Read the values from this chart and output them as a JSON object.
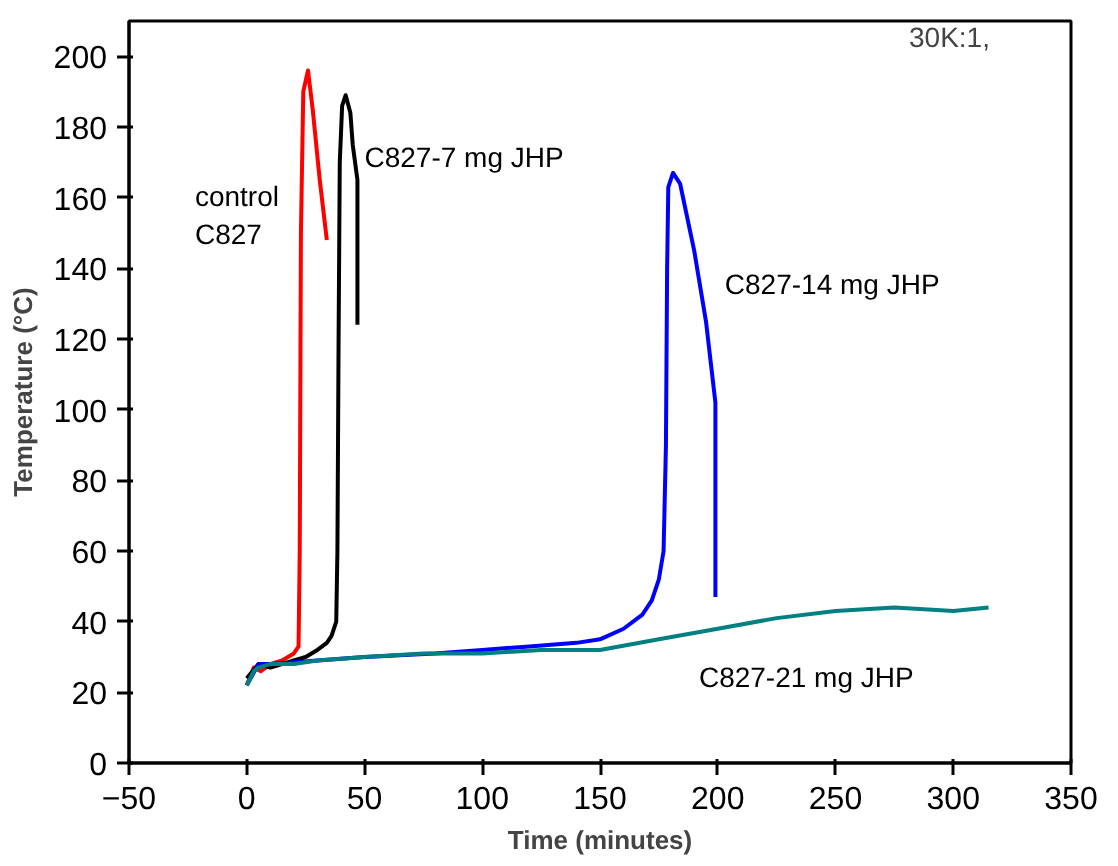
{
  "chart_data": {
    "type": "line",
    "xlabel": "Time (minutes)",
    "ylabel": "Temperature (°C)",
    "xlim": [
      -50,
      350
    ],
    "ylim": [
      0,
      210
    ],
    "xticks": [
      -50,
      0,
      50,
      100,
      150,
      200,
      250,
      300,
      350
    ],
    "yticks": [
      0,
      20,
      40,
      60,
      80,
      100,
      120,
      140,
      160,
      180,
      200
    ],
    "grid": false,
    "legend": false,
    "marker": "none",
    "line_style": "solid",
    "series": [
      {
        "name": "control\nC827",
        "color": "#ff0000",
        "x": [
          0,
          3,
          6,
          10,
          15,
          20,
          22,
          22.5,
          23,
          24,
          26,
          28,
          31,
          34
        ],
        "values": [
          22,
          27,
          26,
          28,
          29,
          31,
          33,
          60,
          150,
          190,
          196,
          185,
          165,
          148
        ]
      },
      {
        "name": "C827-7 mg JHP",
        "color": "#000000",
        "x": [
          0,
          5,
          10,
          15,
          20,
          25,
          30,
          34,
          36,
          38,
          38.5,
          39,
          39.5,
          40.5,
          42,
          44,
          45,
          47,
          47
        ],
        "values": [
          24,
          28,
          27,
          28,
          29,
          30,
          32,
          34,
          36,
          40,
          60,
          120,
          170,
          186,
          189,
          184,
          175,
          165,
          124
        ]
      },
      {
        "name": "C827-14 mg JHP",
        "color": "#0000ff",
        "x": [
          0,
          5,
          10,
          30,
          50,
          80,
          100,
          120,
          140,
          150,
          160,
          168,
          172,
          175,
          177,
          178,
          178.5,
          179,
          181,
          184,
          190,
          195,
          199,
          199
        ],
        "values": [
          22,
          28,
          28,
          29,
          30,
          31,
          32,
          33,
          34,
          35,
          38,
          42,
          46,
          52,
          60,
          90,
          140,
          163,
          167,
          164,
          145,
          125,
          102,
          47
        ]
      },
      {
        "name": "C827-21 mg JHP",
        "color": "#008080",
        "x": [
          0,
          3,
          5,
          10,
          20,
          30,
          50,
          75,
          100,
          125,
          150,
          175,
          200,
          225,
          250,
          275,
          300,
          315
        ],
        "values": [
          22,
          26,
          27,
          28,
          28,
          29,
          30,
          31,
          31,
          32,
          32,
          35,
          38,
          41,
          43,
          44,
          43,
          44
        ]
      }
    ],
    "annotations": [
      "30K:1,"
    ]
  }
}
